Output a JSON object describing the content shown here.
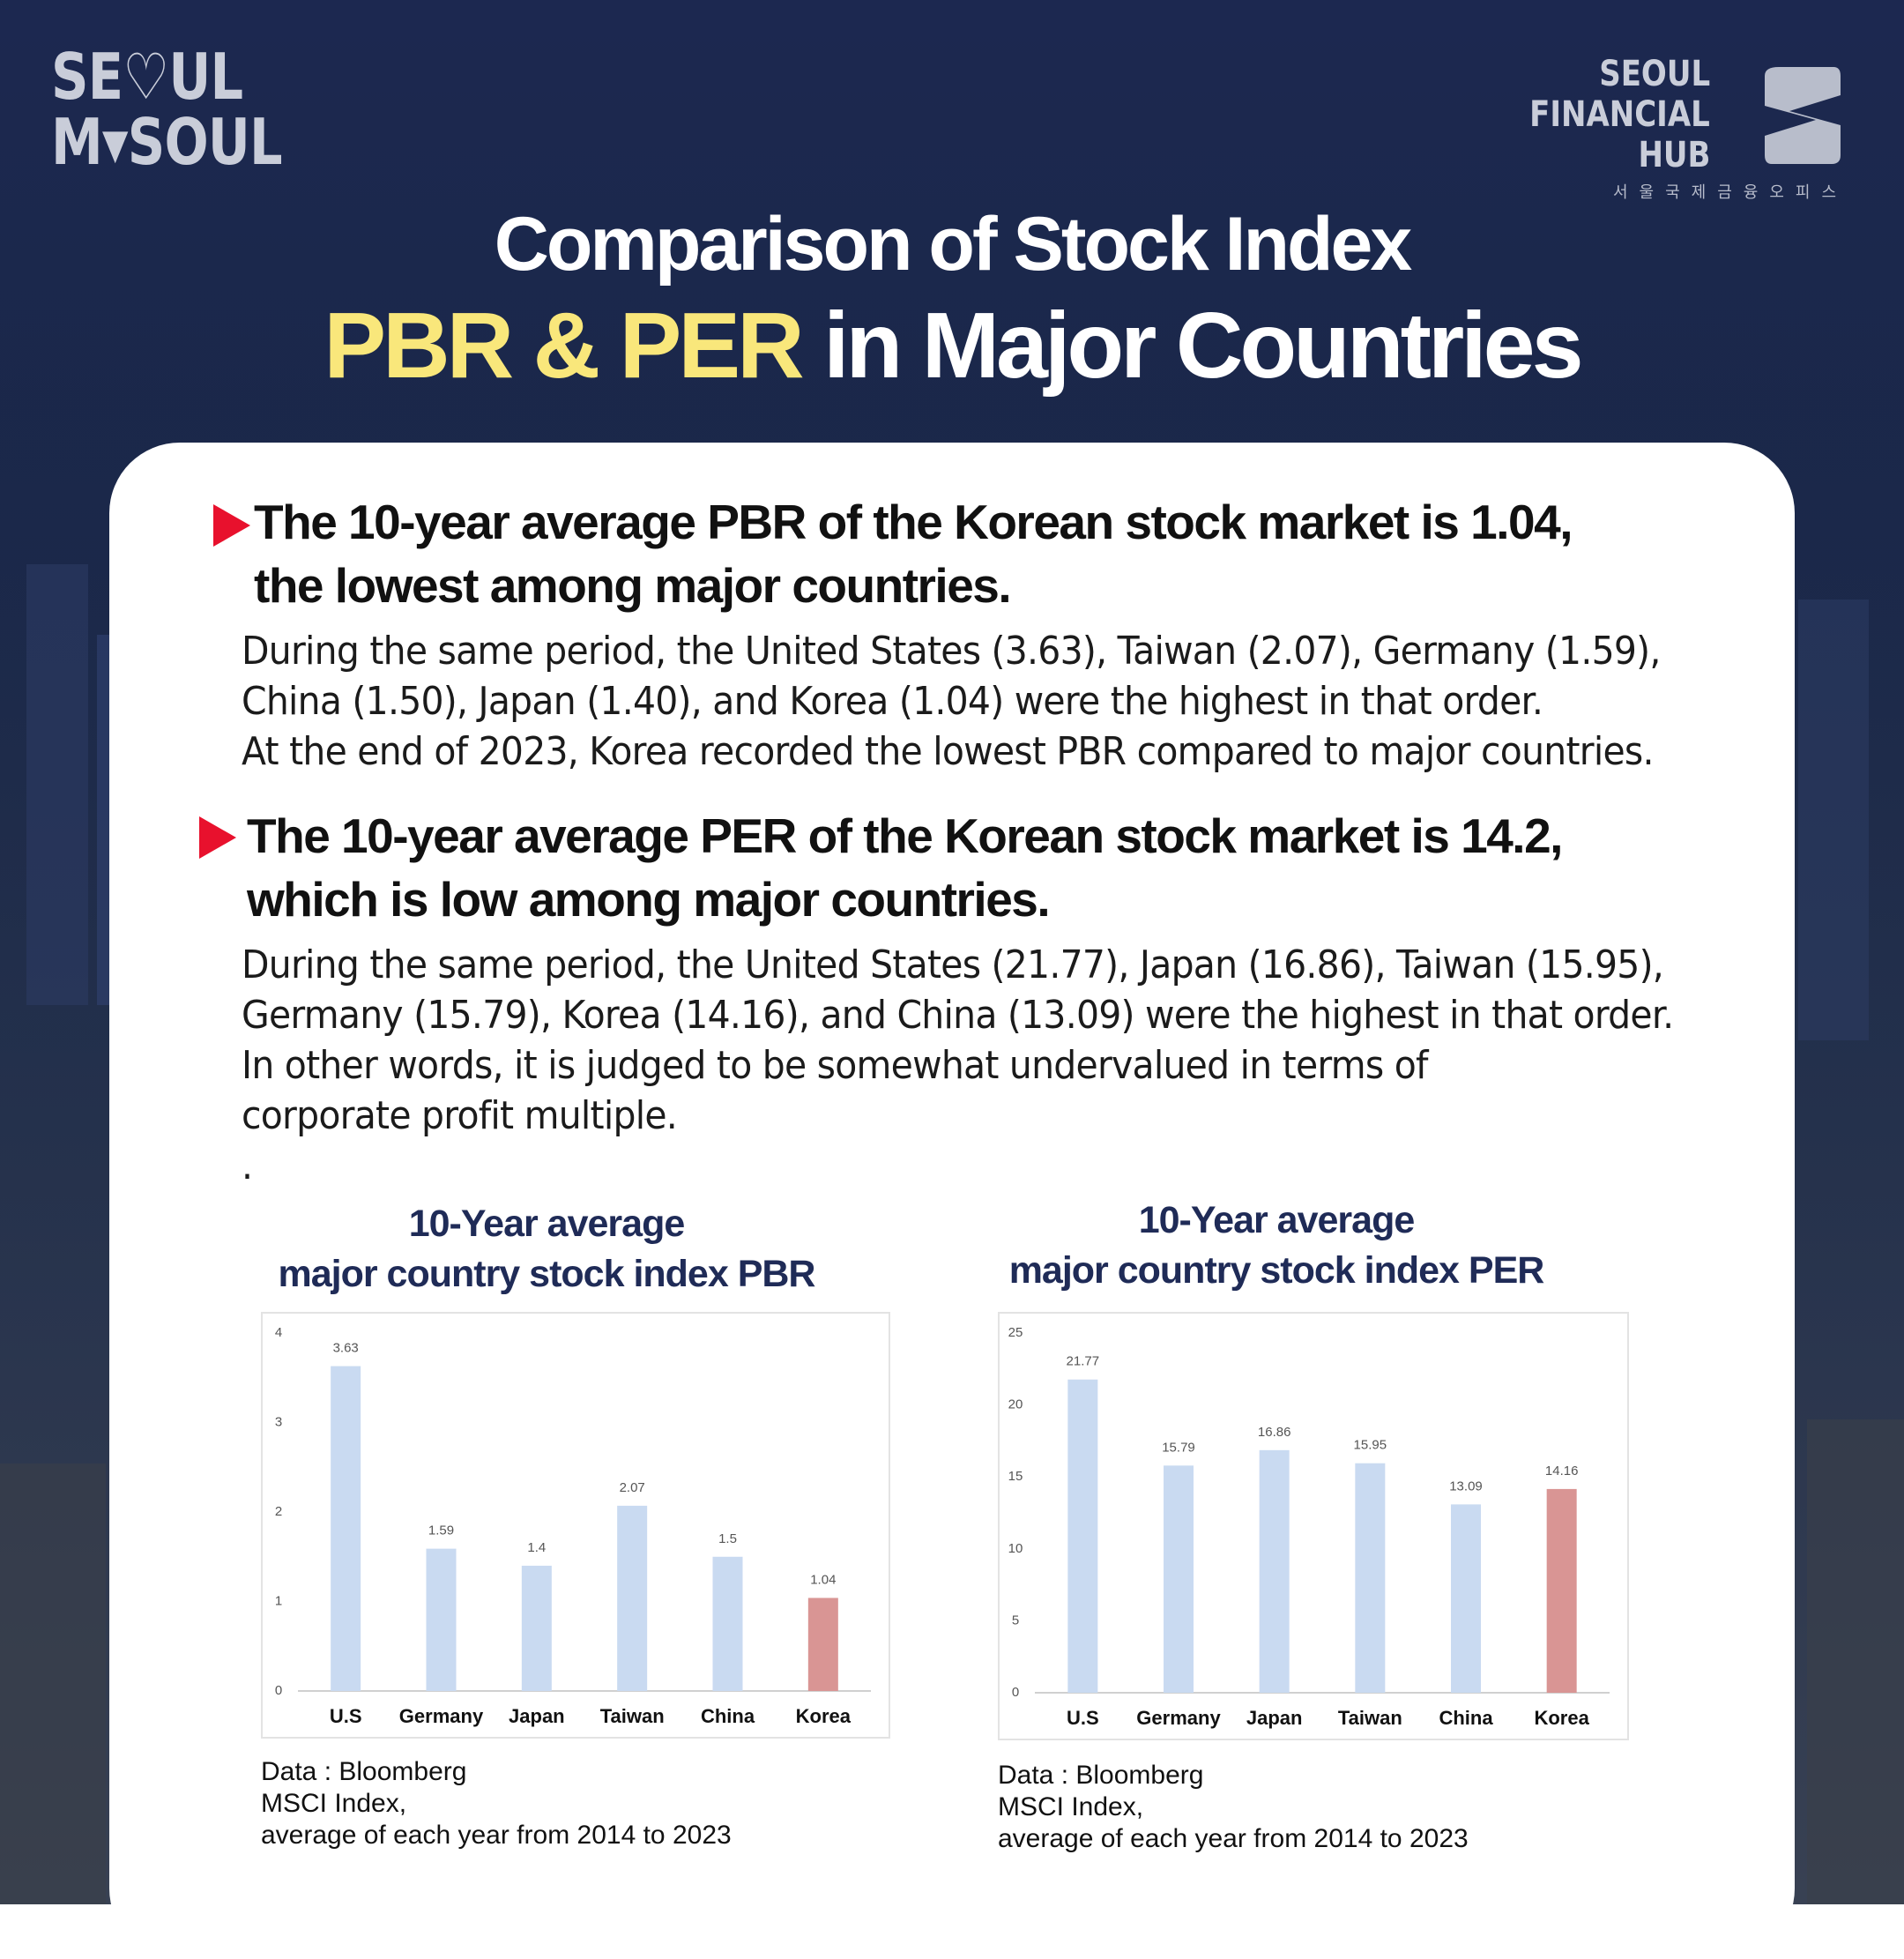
{
  "logos": {
    "left": {
      "line1": "SE♡UL",
      "line2": "M▾SOUL"
    },
    "right": {
      "line1": "SEOUL",
      "line2": "FINANCIAL",
      "line3": "HUB",
      "sub": "서울국제금융오피스"
    }
  },
  "header": {
    "title_line1": "Comparison of Stock Index",
    "title_line2_highlight": "PBR & PER",
    "title_line2_rest": " in Major Countries"
  },
  "sections": [
    {
      "heading_line1": "The 10-year average PBR of the Korean stock market is 1.04,",
      "heading_line2": "the lowest among major countries.",
      "body": [
        "During the same period, the United States (3.63), Taiwan (2.07), Germany (1.59),",
        "China (1.50), Japan (1.40), and Korea (1.04) were the highest in that order.",
        "At the end of 2023, Korea recorded the lowest PBR compared to major countries."
      ]
    },
    {
      "heading_line1": "The 10-year average PER of the Korean stock market is 14.2,",
      "heading_line2": "which is low among major countries.",
      "body": [
        "During the same period, the United States (21.77), Japan (16.86), Taiwan (15.95),",
        "Germany (15.79), Korea (14.16), and China (13.09) were the highest in that order.",
        "In other words, it is judged to be somewhat undervalued in terms of",
        "corporate profit multiple.",
        "."
      ]
    }
  ],
  "colors": {
    "bar": "#c9daf1",
    "highlight_bar": "#d99594",
    "accent_yellow": "#f9e77b",
    "bullet_red": "#e8112d"
  },
  "chart_data": [
    {
      "type": "bar",
      "title_line1": "10-Year average",
      "title_line2": "major country stock index PBR",
      "categories": [
        "U.S",
        "Germany",
        "Japan",
        "Taiwan",
        "China",
        "Korea"
      ],
      "values": [
        3.63,
        1.59,
        1.4,
        2.07,
        1.5,
        1.04
      ],
      "data_labels": [
        "3.63",
        "1.59",
        "1.4",
        "2.07",
        "1.5",
        "1.04"
      ],
      "highlight": "Korea",
      "ylim": [
        0,
        4
      ],
      "yticks": [
        0,
        1,
        2,
        3,
        4
      ],
      "grid": false,
      "source": [
        "Data : Bloomberg",
        "MSCI Index,",
        "average of each year from 2014 to 2023"
      ]
    },
    {
      "type": "bar",
      "title_line1": "10-Year average",
      "title_line2": "major country stock index PER",
      "categories": [
        "U.S",
        "Germany",
        "Japan",
        "Taiwan",
        "China",
        "Korea"
      ],
      "values": [
        21.77,
        15.79,
        16.86,
        15.95,
        13.09,
        14.16
      ],
      "data_labels": [
        "21.77",
        "15.79",
        "16.86",
        "15.95",
        "13.09",
        "14.16"
      ],
      "highlight": "Korea",
      "ylim": [
        0,
        25
      ],
      "yticks": [
        0,
        5,
        10,
        15,
        20,
        25
      ],
      "grid": false,
      "source": [
        "Data : Bloomberg",
        "MSCI Index,",
        "average of each year from 2014 to 2023"
      ]
    }
  ]
}
